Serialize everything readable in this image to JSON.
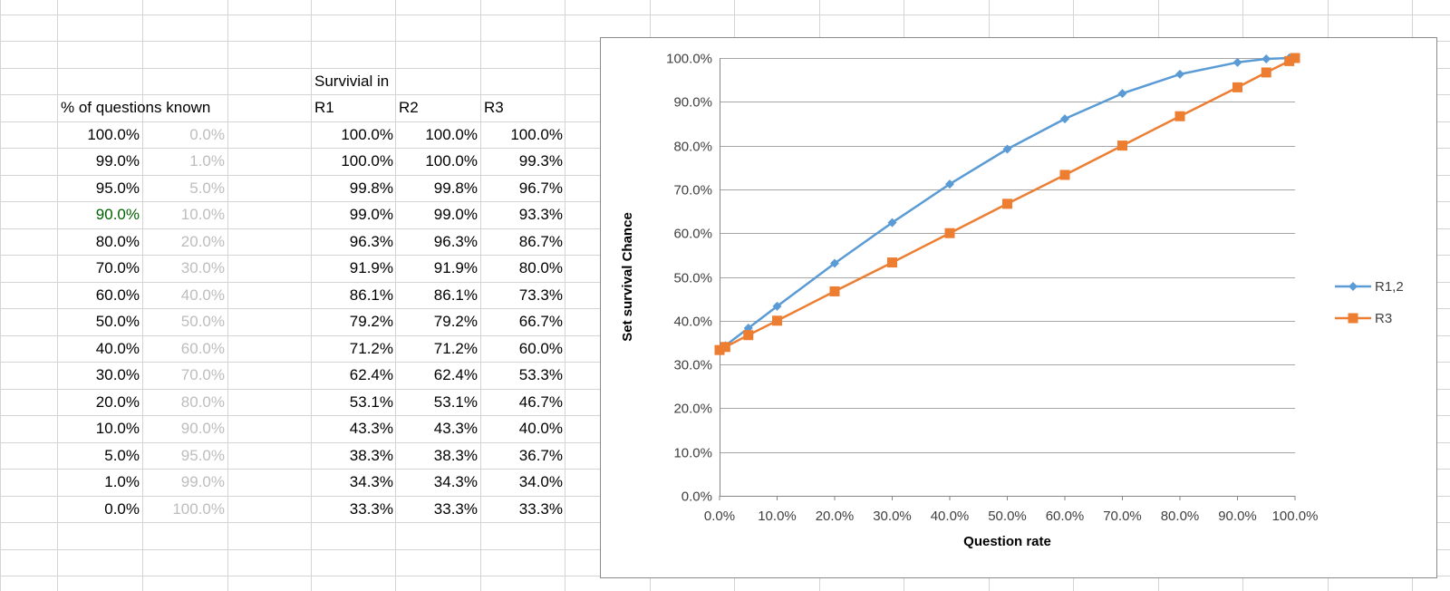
{
  "sheet": {
    "header_survival": "Survivial in",
    "header_known": "% of questions known",
    "col_r1": "R1",
    "col_r2": "R2",
    "col_r3": "R3",
    "rows": [
      {
        "known": "100.0%",
        "unknown": "0.0%",
        "r1": "100.0%",
        "r2": "100.0%",
        "r3": "100.0%"
      },
      {
        "known": "99.0%",
        "unknown": "1.0%",
        "r1": "100.0%",
        "r2": "100.0%",
        "r3": "99.3%"
      },
      {
        "known": "95.0%",
        "unknown": "5.0%",
        "r1": "99.8%",
        "r2": "99.8%",
        "r3": "96.7%"
      },
      {
        "known": "90.0%",
        "unknown": "10.0%",
        "r1": "99.0%",
        "r2": "99.0%",
        "r3": "93.3%"
      },
      {
        "known": "80.0%",
        "unknown": "20.0%",
        "r1": "96.3%",
        "r2": "96.3%",
        "r3": "86.7%"
      },
      {
        "known": "70.0%",
        "unknown": "30.0%",
        "r1": "91.9%",
        "r2": "91.9%",
        "r3": "80.0%"
      },
      {
        "known": "60.0%",
        "unknown": "40.0%",
        "r1": "86.1%",
        "r2": "86.1%",
        "r3": "73.3%"
      },
      {
        "known": "50.0%",
        "unknown": "50.0%",
        "r1": "79.2%",
        "r2": "79.2%",
        "r3": "66.7%"
      },
      {
        "known": "40.0%",
        "unknown": "60.0%",
        "r1": "71.2%",
        "r2": "71.2%",
        "r3": "60.0%"
      },
      {
        "known": "30.0%",
        "unknown": "70.0%",
        "r1": "62.4%",
        "r2": "62.4%",
        "r3": "53.3%"
      },
      {
        "known": "20.0%",
        "unknown": "80.0%",
        "r1": "53.1%",
        "r2": "53.1%",
        "r3": "46.7%"
      },
      {
        "known": "10.0%",
        "unknown": "90.0%",
        "r1": "43.3%",
        "r2": "43.3%",
        "r3": "40.0%"
      },
      {
        "known": "5.0%",
        "unknown": "95.0%",
        "r1": "38.3%",
        "r2": "38.3%",
        "r3": "36.7%"
      },
      {
        "known": "1.0%",
        "unknown": "99.0%",
        "r1": "34.3%",
        "r2": "34.3%",
        "r3": "34.0%"
      },
      {
        "known": "0.0%",
        "unknown": "100.0%",
        "r1": "33.3%",
        "r2": "33.3%",
        "r3": "33.3%"
      }
    ],
    "highlighted_known_value": "90.0%",
    "colors": {
      "gridline": "#d4d4d4",
      "faded_text": "#bdbdbd",
      "highlight_text": "#006100"
    }
  },
  "chart_data": {
    "type": "line",
    "title": "",
    "xlabel": "Question rate",
    "ylabel": "Set survival Chance",
    "xlim": [
      0,
      1
    ],
    "ylim": [
      0,
      1
    ],
    "x_ticks": [
      "0.0%",
      "10.0%",
      "20.0%",
      "30.0%",
      "40.0%",
      "50.0%",
      "60.0%",
      "70.0%",
      "80.0%",
      "90.0%",
      "100.0%"
    ],
    "y_ticks": [
      "0.0%",
      "10.0%",
      "20.0%",
      "30.0%",
      "40.0%",
      "50.0%",
      "60.0%",
      "70.0%",
      "80.0%",
      "90.0%",
      "100.0%"
    ],
    "grid": true,
    "legend_position": "right",
    "series": [
      {
        "name": "R1,2",
        "color": "#5b9bd5",
        "marker": "diamond",
        "x": [
          0,
          0.01,
          0.05,
          0.1,
          0.2,
          0.3,
          0.4,
          0.5,
          0.6,
          0.7,
          0.8,
          0.9,
          0.95,
          0.99,
          1.0
        ],
        "y": [
          0.333,
          0.343,
          0.383,
          0.433,
          0.531,
          0.624,
          0.712,
          0.792,
          0.861,
          0.919,
          0.963,
          0.99,
          0.998,
          1.0,
          1.0
        ]
      },
      {
        "name": "R3",
        "color": "#ed7d31",
        "marker": "square",
        "x": [
          0,
          0.01,
          0.05,
          0.1,
          0.2,
          0.3,
          0.4,
          0.5,
          0.6,
          0.7,
          0.8,
          0.9,
          0.95,
          0.99,
          1.0
        ],
        "y": [
          0.333,
          0.34,
          0.367,
          0.4,
          0.467,
          0.533,
          0.6,
          0.667,
          0.733,
          0.8,
          0.867,
          0.933,
          0.967,
          0.993,
          1.0
        ]
      }
    ]
  }
}
